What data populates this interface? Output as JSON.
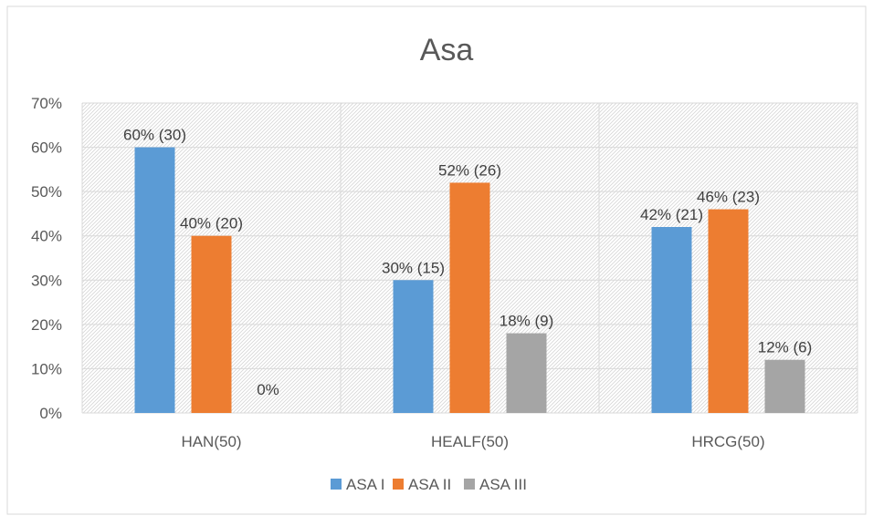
{
  "chart_data": {
    "type": "bar",
    "title": "Asa",
    "categories": [
      "HAN(50)",
      "HEALF(50)",
      "HRCG(50)"
    ],
    "series": [
      {
        "name": "ASA I",
        "color": "#5b9bd5",
        "values": [
          60,
          30,
          42
        ],
        "labels": [
          "60% (30)",
          "30% (15)",
          "42% (21)"
        ]
      },
      {
        "name": "ASA II",
        "color": "#ed7d31",
        "values": [
          40,
          52,
          46
        ],
        "labels": [
          "40% (20)",
          "52% (26)",
          "46% (23)"
        ]
      },
      {
        "name": "ASA III",
        "color": "#a5a5a5",
        "values": [
          0,
          18,
          12
        ],
        "labels": [
          "0%",
          "18% (9)",
          "12% (6)"
        ]
      }
    ],
    "ylim": [
      0,
      70
    ],
    "yticks": [
      0,
      10,
      20,
      30,
      40,
      50,
      60,
      70
    ],
    "ytick_labels": [
      "0%",
      "10%",
      "20%",
      "30%",
      "40%",
      "50%",
      "60%",
      "70%"
    ],
    "xlabel": "",
    "ylabel": "",
    "grid": true,
    "legend_position": "bottom"
  }
}
